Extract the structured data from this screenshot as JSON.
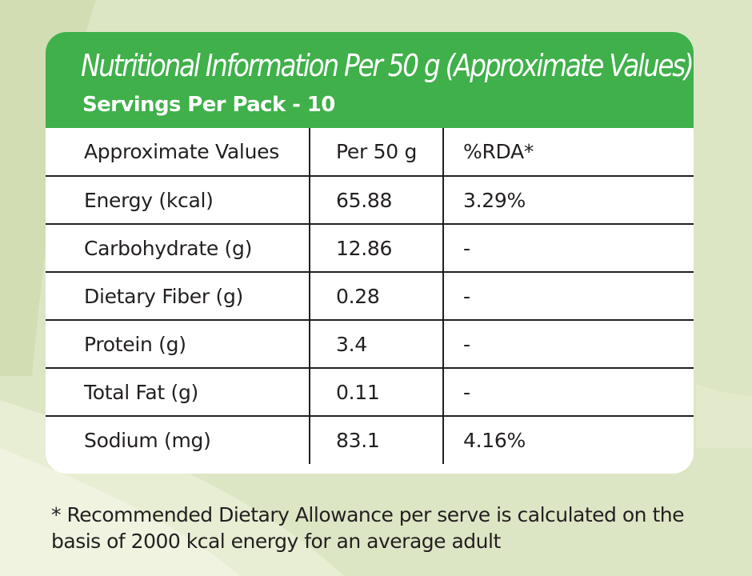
{
  "colors": {
    "background": "#dde6c4",
    "header_green": "#3fb04a",
    "text_dark": "#231f20"
  },
  "header": {
    "title": "Nutritional Information Per 50 g (Approximate Values)",
    "subtitle": "Servings Per Pack - 10"
  },
  "table": {
    "columns": [
      "Approximate Values",
      "Per 50 g",
      "%RDA*"
    ],
    "rows": [
      [
        "Energy (kcal)",
        "65.88",
        "3.29%"
      ],
      [
        "Carbohydrate (g)",
        "12.86",
        "-"
      ],
      [
        "Dietary Fiber (g)",
        "0.28",
        "-"
      ],
      [
        "Protein (g)",
        "3.4",
        "-"
      ],
      [
        "Total Fat (g)",
        "0.11",
        "-"
      ],
      [
        "Sodium (mg)",
        "83.1",
        "4.16%"
      ]
    ]
  },
  "footnote": {
    "line1": "* Recommended Dietary Allowance per serve is calculated on the",
    "line2": "basis of 2000 kcal energy for an average adult"
  }
}
